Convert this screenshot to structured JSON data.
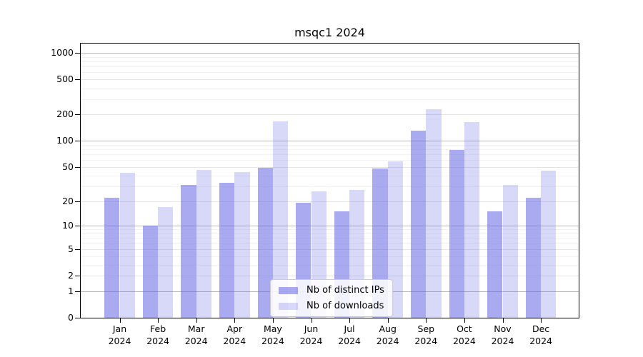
{
  "chart_data": {
    "type": "bar",
    "title": "msqc1 2024",
    "scale": "symlog (positions proportional to log(1+value))",
    "grid": true,
    "legend_position": "lower center",
    "categories": [
      {
        "month": "Jan",
        "year": "2024"
      },
      {
        "month": "Feb",
        "year": "2024"
      },
      {
        "month": "Mar",
        "year": "2024"
      },
      {
        "month": "Apr",
        "year": "2024"
      },
      {
        "month": "May",
        "year": "2024"
      },
      {
        "month": "Jun",
        "year": "2024"
      },
      {
        "month": "Jul",
        "year": "2024"
      },
      {
        "month": "Aug",
        "year": "2024"
      },
      {
        "month": "Sep",
        "year": "2024"
      },
      {
        "month": "Oct",
        "year": "2024"
      },
      {
        "month": "Nov",
        "year": "2024"
      },
      {
        "month": "Dec",
        "year": "2024"
      }
    ],
    "series": [
      {
        "name": "Nb of distinct IPs",
        "color": "rgba(100,100,230,0.55)",
        "values": [
          22,
          10,
          31,
          33,
          49,
          19,
          15,
          48,
          131,
          78,
          15,
          22
        ]
      },
      {
        "name": "Nb of downloads",
        "color": "rgba(100,100,230,0.25)",
        "values": [
          43,
          17,
          46,
          44,
          165,
          26,
          27,
          58,
          230,
          163,
          31,
          45
        ]
      }
    ],
    "y_ticks": [
      0,
      1,
      2,
      5,
      10,
      20,
      50,
      100,
      200,
      500,
      1000
    ],
    "y_minor_ticks": [
      3,
      4,
      6,
      7,
      8,
      9,
      30,
      40,
      60,
      70,
      80,
      90,
      300,
      400,
      600,
      700,
      800,
      900
    ],
    "ylim": [
      0,
      1275
    ],
    "colors": {
      "decade_gridline": "#b9b9b9",
      "tick_gridline": "#e4e4e4",
      "minor_gridline": "#f3f3f3",
      "spine": "#000000",
      "text": "#000000",
      "background": "#ffffff",
      "legend_border": "#cccccc"
    }
  }
}
